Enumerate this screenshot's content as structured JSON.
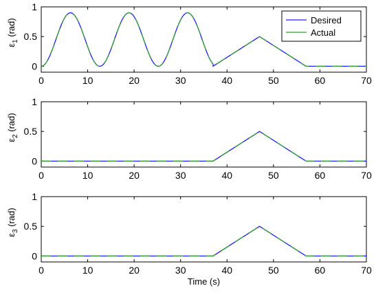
{
  "chart_data": [
    {
      "type": "line",
      "ylabel": "ε1 (rad)",
      "ylabel_main": "ε",
      "ylabel_sub": "1",
      "ylabel_unit": " (rad)",
      "xlabel": "",
      "xlim": [
        0,
        70
      ],
      "ylim": [
        -0.1,
        1
      ],
      "xticks": [
        0,
        10,
        20,
        30,
        40,
        50,
        60,
        70
      ],
      "yticks": [
        0,
        0.5,
        1
      ],
      "ytick_labels": [
        "0",
        "0.5",
        "1"
      ],
      "legend": {
        "placement": "top-right",
        "entries": [
          "Desired",
          "Actual"
        ]
      },
      "series": [
        {
          "name": "Desired",
          "color": "#1f1fff",
          "style": "solid",
          "kind": "tracking-1"
        },
        {
          "name": "Actual",
          "color": "#2ca02c",
          "style": "dashed",
          "kind": "tracking-1"
        }
      ],
      "segments": {
        "sine": {
          "x_start": 0,
          "x_end": 37,
          "amplitude": 0.45,
          "offset": 0.45,
          "period": 12.6
        },
        "ramp": {
          "x": [
            37,
            47,
            57,
            70
          ],
          "y": [
            0,
            0.5,
            0,
            0
          ]
        }
      }
    },
    {
      "type": "line",
      "ylabel": "ε2 (rad)",
      "ylabel_main": "ε",
      "ylabel_sub": "2",
      "ylabel_unit": " (rad)",
      "xlabel": "",
      "xlim": [
        0,
        70
      ],
      "ylim": [
        -0.1,
        1
      ],
      "xticks": [
        0,
        10,
        20,
        30,
        40,
        50,
        60,
        70
      ],
      "yticks": [
        0,
        0.5,
        1
      ],
      "ytick_labels": [
        "0",
        "0.5",
        "1"
      ],
      "series": [
        {
          "name": "Desired",
          "color": "#1f1fff",
          "x": [
            0,
            37,
            47,
            57,
            70
          ],
          "y": [
            0,
            0,
            0.5,
            0,
            0
          ]
        },
        {
          "name": "Actual",
          "color": "#2ca02c",
          "x": [
            0,
            37,
            47,
            57,
            70
          ],
          "y": [
            0,
            0,
            0.5,
            0,
            0
          ]
        }
      ]
    },
    {
      "type": "line",
      "ylabel": "ε3 (rad)",
      "ylabel_main": "ε",
      "ylabel_sub": "3",
      "ylabel_unit": " (rad)",
      "xlabel": "Time (s)",
      "xlim": [
        0,
        70
      ],
      "ylim": [
        -0.1,
        1
      ],
      "xticks": [
        0,
        10,
        20,
        30,
        40,
        50,
        60,
        70
      ],
      "yticks": [
        0,
        0.5,
        1
      ],
      "ytick_labels": [
        "0",
        "0.5",
        "1"
      ],
      "series": [
        {
          "name": "Desired",
          "color": "#1f1fff",
          "x": [
            0,
            37,
            47,
            57,
            70
          ],
          "y": [
            0,
            0,
            0.5,
            0,
            0
          ]
        },
        {
          "name": "Actual",
          "color": "#2ca02c",
          "x": [
            0,
            37,
            47,
            57,
            70
          ],
          "y": [
            0,
            0,
            0.5,
            0,
            0
          ]
        }
      ]
    }
  ]
}
